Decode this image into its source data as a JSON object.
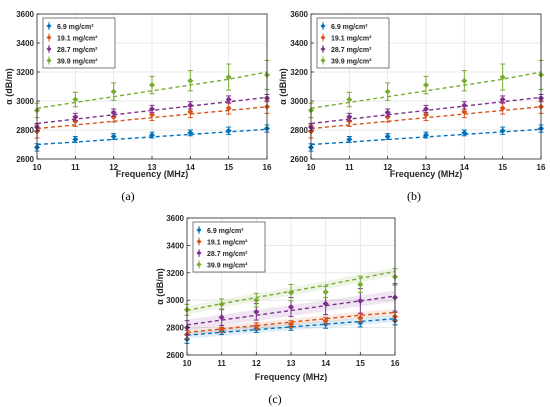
{
  "figure": {
    "panel_labels": [
      "(a)",
      "(b)",
      "(c)"
    ]
  },
  "chart_data": [
    {
      "type": "scatter",
      "panel": "(a)",
      "xlabel": "Frequency (MHz)",
      "ylabel": "α (dB/m)",
      "xlim": [
        10,
        16
      ],
      "ylim": [
        2600,
        3600
      ],
      "xticks": [
        10,
        11,
        12,
        13,
        14,
        15,
        16
      ],
      "yticks": [
        2600,
        2800,
        3000,
        3200,
        3400,
        3600
      ],
      "grid": true,
      "legend_position": "top-left",
      "x": [
        10,
        11,
        12,
        13,
        14,
        15,
        16
      ],
      "series": [
        {
          "name": "6.9 mg/cm²",
          "color": "#0072BD",
          "values": [
            2680,
            2735,
            2755,
            2765,
            2780,
            2795,
            2810
          ],
          "error": [
            25,
            20,
            20,
            20,
            20,
            25,
            25
          ],
          "fit": [
            2700,
            2717,
            2735,
            2752,
            2770,
            2787,
            2805
          ]
        },
        {
          "name": "19.1 mg/cm²",
          "color": "#D95319",
          "values": [
            2790,
            2860,
            2890,
            2905,
            2925,
            2950,
            2960
          ],
          "error": [
            45,
            35,
            35,
            40,
            40,
            40,
            45
          ],
          "fit": [
            2810,
            2835,
            2860,
            2885,
            2910,
            2935,
            2960
          ]
        },
        {
          "name": "28.7 mg/cm²",
          "color": "#7E2F8E",
          "values": [
            2820,
            2890,
            2920,
            2945,
            2970,
            3010,
            3020
          ],
          "error": [
            25,
            25,
            25,
            25,
            25,
            25,
            25
          ],
          "fit": [
            2845,
            2875,
            2905,
            2935,
            2965,
            2995,
            3025
          ]
        },
        {
          "name": "39.9 mg/cm²",
          "color": "#77AC30",
          "values": [
            2935,
            3010,
            3065,
            3110,
            3140,
            3165,
            3180
          ],
          "error": [
            50,
            50,
            60,
            60,
            70,
            90,
            100
          ],
          "fit": [
            2950,
            2990,
            3030,
            3070,
            3110,
            3150,
            3200
          ]
        }
      ]
    },
    {
      "type": "scatter",
      "panel": "(b)",
      "xlabel": "Frequency (MHz)",
      "ylabel": "α (dB/m)",
      "xlim": [
        10,
        16
      ],
      "ylim": [
        2600,
        3600
      ],
      "xticks": [
        10,
        11,
        12,
        13,
        14,
        15,
        16
      ],
      "yticks": [
        2600,
        2800,
        3000,
        3200,
        3400,
        3600
      ],
      "grid": true,
      "legend_position": "top-left",
      "x": [
        10,
        11,
        12,
        13,
        14,
        15,
        16
      ],
      "series": [
        {
          "name": "6.9 mg/cm²",
          "color": "#0072BD",
          "values": [
            2680,
            2735,
            2755,
            2765,
            2780,
            2795,
            2810
          ],
          "error": [
            25,
            20,
            20,
            20,
            20,
            25,
            25
          ],
          "fit": [
            2700,
            2717,
            2735,
            2752,
            2770,
            2787,
            2805
          ]
        },
        {
          "name": "19.1 mg/cm²",
          "color": "#D95319",
          "values": [
            2790,
            2860,
            2890,
            2905,
            2925,
            2950,
            2960
          ],
          "error": [
            45,
            35,
            35,
            40,
            40,
            40,
            45
          ],
          "fit": [
            2810,
            2835,
            2860,
            2885,
            2910,
            2935,
            2960
          ]
        },
        {
          "name": "28.7 mg/cm²",
          "color": "#7E2F8E",
          "values": [
            2820,
            2890,
            2920,
            2945,
            2970,
            3010,
            3020
          ],
          "error": [
            25,
            25,
            25,
            25,
            25,
            25,
            25
          ],
          "fit": [
            2845,
            2875,
            2905,
            2935,
            2965,
            2995,
            3025
          ]
        },
        {
          "name": "39.9 mg/cm²",
          "color": "#77AC30",
          "values": [
            2935,
            3010,
            3065,
            3110,
            3140,
            3165,
            3180
          ],
          "error": [
            50,
            50,
            60,
            60,
            70,
            90,
            100
          ],
          "fit": [
            2950,
            2990,
            3030,
            3070,
            3110,
            3150,
            3200
          ]
        }
      ]
    },
    {
      "type": "scatter",
      "panel": "(c)",
      "xlabel": "Frequency (MHz)",
      "ylabel": "α (dB/m)",
      "xlim": [
        10,
        16
      ],
      "ylim": [
        2600,
        3600
      ],
      "xticks": [
        10,
        11,
        12,
        13,
        14,
        15,
        16
      ],
      "yticks": [
        2600,
        2800,
        3000,
        3200,
        3400,
        3600
      ],
      "grid": true,
      "legend_position": "top-left",
      "x": [
        10,
        11,
        12,
        13,
        14,
        15,
        16
      ],
      "series": [
        {
          "name": "6.9 mg/cm²",
          "color": "#0072BD",
          "values": [
            2715,
            2775,
            2790,
            2805,
            2825,
            2835,
            2850
          ],
          "error": [
            30,
            25,
            25,
            25,
            30,
            30,
            30
          ],
          "fit": [
            2745,
            2765,
            2785,
            2805,
            2825,
            2845,
            2865
          ],
          "band": 25
        },
        {
          "name": "19.1 mg/cm²",
          "color": "#D95319",
          "values": [
            2750,
            2790,
            2810,
            2825,
            2850,
            2870,
            2880
          ],
          "error": [
            30,
            25,
            25,
            25,
            25,
            30,
            30
          ],
          "fit": [
            2765,
            2790,
            2815,
            2840,
            2865,
            2890,
            2910
          ],
          "band": 25
        },
        {
          "name": "28.7 mg/cm²",
          "color": "#7E2F8E",
          "values": [
            2800,
            2875,
            2915,
            2950,
            2975,
            2995,
            3020
          ],
          "error": [
            50,
            60,
            60,
            70,
            80,
            90,
            100
          ],
          "fit": [
            2820,
            2855,
            2890,
            2925,
            2960,
            2995,
            3030
          ],
          "band": 40
        },
        {
          "name": "39.9 mg/cm²",
          "color": "#77AC30",
          "values": [
            2930,
            2970,
            3000,
            3055,
            3060,
            3115,
            3170
          ],
          "error": [
            40,
            40,
            50,
            60,
            40,
            60,
            60
          ],
          "fit": [
            2925,
            2975,
            3020,
            3065,
            3110,
            3160,
            3210
          ],
          "band": 30
        }
      ]
    }
  ]
}
